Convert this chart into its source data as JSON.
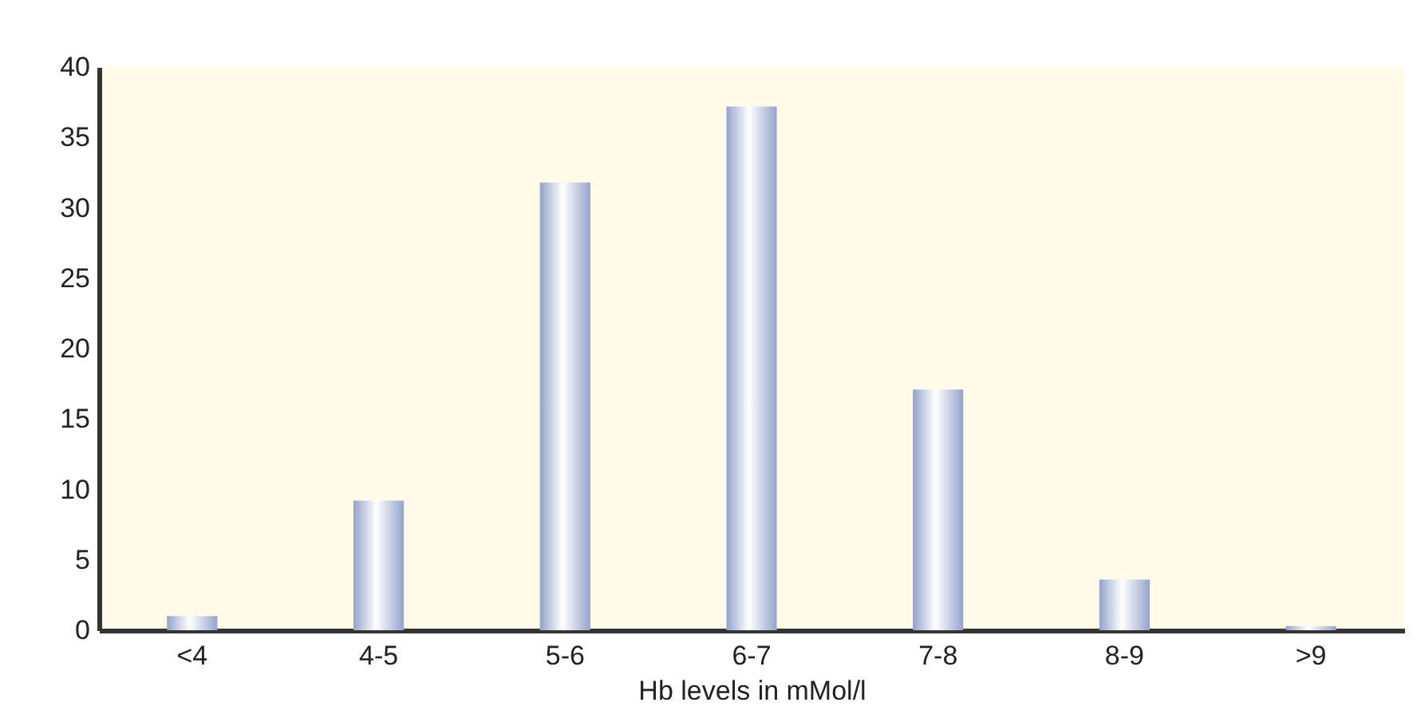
{
  "chart_data": {
    "type": "bar",
    "xlabel": "Hb levels in mMol/l",
    "categories": [
      "<4",
      "4-5",
      "5-6",
      "6-7",
      "7-8",
      "8-9",
      ">9"
    ],
    "values": [
      1.0,
      9.2,
      31.8,
      37.2,
      17.1,
      3.6,
      0.3
    ],
    "color": "#94a3cb",
    "ylim": [
      0,
      40
    ],
    "yticks": [
      0,
      5,
      10,
      15,
      20,
      25,
      30,
      35,
      40
    ],
    "grid": false
  }
}
